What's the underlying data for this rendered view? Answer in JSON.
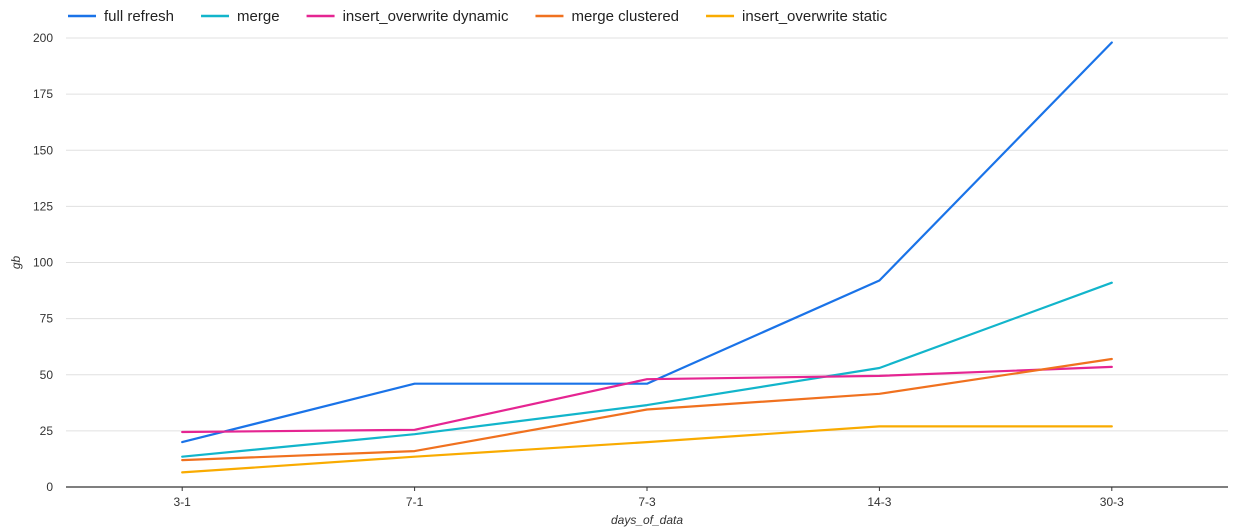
{
  "chart_data": {
    "type": "line",
    "title": "",
    "xlabel": "days_of_data",
    "ylabel": "gb",
    "categories": [
      "3-1",
      "7-1",
      "7-3",
      "14-3",
      "30-3"
    ],
    "ylim": [
      0,
      200
    ],
    "yticks": [
      0,
      25,
      50,
      75,
      100,
      125,
      150,
      175,
      200
    ],
    "grid": true,
    "legend_position": "top-left",
    "series": [
      {
        "name": "full refresh",
        "color": "#1a73e8",
        "values": [
          20,
          46,
          46,
          92,
          198
        ]
      },
      {
        "name": "merge",
        "color": "#12b5cb",
        "values": [
          13.5,
          23.5,
          36.5,
          53,
          91
        ]
      },
      {
        "name": "insert_overwrite dynamic",
        "color": "#e52592",
        "values": [
          24.5,
          25.5,
          48,
          49.5,
          53.5
        ]
      },
      {
        "name": "merge clustered",
        "color": "#f0711f",
        "values": [
          12,
          16,
          34.5,
          41.5,
          57
        ]
      },
      {
        "name": "insert_overwrite static",
        "color": "#f9ab00",
        "values": [
          6.5,
          13.5,
          20,
          27,
          27
        ]
      }
    ]
  }
}
